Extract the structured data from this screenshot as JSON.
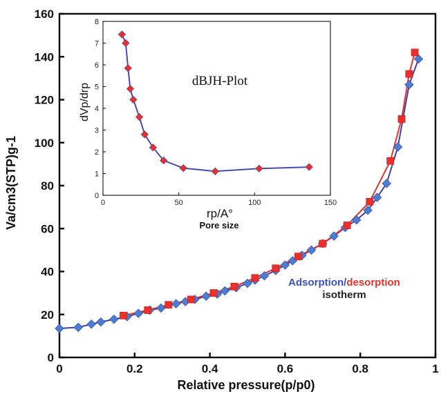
{
  "chart_data": [
    {
      "id": "main",
      "type": "scatter",
      "title": "",
      "xlabel": "Relative pressure(p/p0)",
      "ylabel": "Va/cm3(STP)g-1",
      "xlim": [
        0,
        1
      ],
      "ylim": [
        0,
        160
      ],
      "xticks": [
        "0",
        "0.2",
        "0.4",
        "0.6",
        "0.8",
        "1"
      ],
      "yticks": [
        "0",
        "20",
        "40",
        "60",
        "80",
        "100",
        "120",
        "140",
        "160"
      ],
      "grid": false,
      "legend_lines": [
        "Adsorption/desorption",
        "isotherm"
      ],
      "series": [
        {
          "name": "Adsorption",
          "color": "#4a7fd0",
          "line_color": "#3b3fa8",
          "marker": "diamond",
          "points": [
            [
              0.0,
              13.5
            ],
            [
              0.05,
              14.0
            ],
            [
              0.085,
              15.5
            ],
            [
              0.11,
              16.5
            ],
            [
              0.145,
              17.8
            ],
            [
              0.18,
              19.0
            ],
            [
              0.21,
              20.5
            ],
            [
              0.24,
              22.0
            ],
            [
              0.27,
              23.0
            ],
            [
              0.31,
              25.0
            ],
            [
              0.335,
              26.0
            ],
            [
              0.36,
              27.0
            ],
            [
              0.39,
              28.5
            ],
            [
              0.42,
              29.5
            ],
            [
              0.44,
              31.0
            ],
            [
              0.47,
              32.5
            ],
            [
              0.5,
              34.5
            ],
            [
              0.52,
              36.0
            ],
            [
              0.545,
              38.0
            ],
            [
              0.575,
              40.5
            ],
            [
              0.6,
              43.0
            ],
            [
              0.62,
              45.0
            ],
            [
              0.645,
              47.5
            ],
            [
              0.67,
              50.0
            ],
            [
              0.7,
              53.0
            ],
            [
              0.73,
              56.5
            ],
            [
              0.76,
              60.5
            ],
            [
              0.79,
              64.0
            ],
            [
              0.82,
              68.5
            ],
            [
              0.845,
              74.5
            ],
            [
              0.87,
              81.0
            ],
            [
              0.9,
              98.0
            ],
            [
              0.93,
              127.0
            ],
            [
              0.955,
              139.0
            ]
          ]
        },
        {
          "name": "desorption",
          "color": "#e8302c",
          "line_color": "#e8302c",
          "marker": "square",
          "points": [
            [
              0.17,
              19.5
            ],
            [
              0.235,
              22.0
            ],
            [
              0.29,
              24.5
            ],
            [
              0.35,
              27.0
            ],
            [
              0.41,
              30.0
            ],
            [
              0.465,
              33.0
            ],
            [
              0.52,
              37.0
            ],
            [
              0.575,
              41.5
            ],
            [
              0.635,
              47.0
            ],
            [
              0.7,
              53.0
            ],
            [
              0.765,
              61.5
            ],
            [
              0.825,
              72.5
            ],
            [
              0.88,
              91.5
            ],
            [
              0.91,
              111.0
            ],
            [
              0.93,
              132.0
            ],
            [
              0.945,
              142.0
            ]
          ]
        }
      ]
    },
    {
      "id": "inset",
      "type": "line",
      "title": "dBJH-Plot",
      "xlabel": "rp/A°",
      "xlabel_sub": "Pore size",
      "ylabel": "dVp/drp",
      "xlim": [
        0,
        150
      ],
      "ylim": [
        0,
        8
      ],
      "xticks": [
        "0",
        "50",
        "100",
        "150"
      ],
      "yticks": [
        "0",
        "1",
        "2",
        "3",
        "4",
        "5",
        "6",
        "7",
        "8"
      ],
      "grid": false,
      "series": [
        {
          "name": "",
          "color": "#e8302c",
          "line_color": "#4848b0",
          "marker": "diamond",
          "points": [
            [
              12.5,
              7.4
            ],
            [
              15,
              7.0
            ],
            [
              16.5,
              5.85
            ],
            [
              18,
              4.9
            ],
            [
              20,
              4.4
            ],
            [
              24,
              3.6
            ],
            [
              27.5,
              2.8
            ],
            [
              33,
              2.2
            ],
            [
              40,
              1.6
            ],
            [
              53,
              1.25
            ],
            [
              74,
              1.1
            ],
            [
              103,
              1.23
            ],
            [
              136,
              1.3
            ]
          ]
        }
      ]
    }
  ]
}
